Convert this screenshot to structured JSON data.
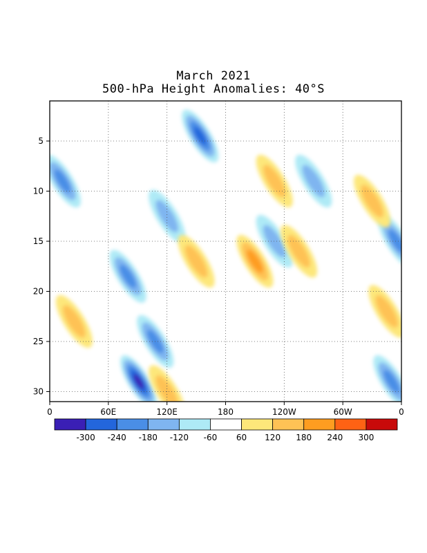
{
  "chart_data": {
    "type": "heatmap",
    "title": "March 2021",
    "subtitle": "500-hPa Height Anomalies: 40°S",
    "xlabel": "",
    "ylabel": "",
    "x_ticks": [
      "0",
      "60E",
      "120E",
      "180",
      "120W",
      "60W",
      "0"
    ],
    "x_tick_values": [
      0,
      60,
      120,
      180,
      240,
      300,
      360
    ],
    "y_ticks": [
      "5",
      "10",
      "15",
      "20",
      "25",
      "30"
    ],
    "y_tick_values": [
      5,
      10,
      15,
      20,
      25,
      30
    ],
    "xlim": [
      0,
      360
    ],
    "ylim": [
      1,
      31
    ],
    "y_inverted": true,
    "grid": true,
    "legend_placement": "bottom",
    "colorbar": {
      "labels": [
        "-300",
        "-240",
        "-180",
        "-120",
        "-60",
        "60",
        "120",
        "180",
        "240",
        "300"
      ],
      "label_values": [
        -300,
        -240,
        -180,
        -120,
        -60,
        60,
        120,
        180,
        240,
        300
      ],
      "colors": [
        "#3a1fb5",
        "#2366dc",
        "#4a8ee6",
        "#7fb5f0",
        "#aeeaf6",
        "#ffffff",
        "#fde77a",
        "#fec255",
        "#fe9d20",
        "#fe6214",
        "#c80a0a"
      ]
    },
    "contour_label": "0",
    "features": [
      {
        "sign": "neg",
        "peak": -240,
        "lon": 154,
        "day": 4.5
      },
      {
        "sign": "neg",
        "peak": -180,
        "lon": 13,
        "day": 9
      },
      {
        "sign": "neg",
        "peak": -120,
        "lon": 120,
        "day": 12.5
      },
      {
        "sign": "neg",
        "peak": -180,
        "lon": 80,
        "day": 18.5
      },
      {
        "sign": "neg",
        "peak": -180,
        "lon": 108,
        "day": 25
      },
      {
        "sign": "neg",
        "peak": -300,
        "lon": 91,
        "day": 29
      },
      {
        "sign": "neg",
        "peak": -180,
        "lon": 355,
        "day": 15
      },
      {
        "sign": "neg",
        "peak": -180,
        "lon": 350,
        "day": 29
      },
      {
        "sign": "neg",
        "peak": -120,
        "lon": 230,
        "day": 15
      },
      {
        "sign": "neg",
        "peak": -120,
        "lon": 270,
        "day": 9
      },
      {
        "sign": "pos",
        "peak": 180,
        "lon": 210,
        "day": 17
      },
      {
        "sign": "pos",
        "peak": 120,
        "lon": 150,
        "day": 17
      },
      {
        "sign": "pos",
        "peak": 120,
        "lon": 230,
        "day": 9
      },
      {
        "sign": "pos",
        "peak": 120,
        "lon": 255,
        "day": 16
      },
      {
        "sign": "pos",
        "peak": 120,
        "lon": 25,
        "day": 23
      },
      {
        "sign": "pos",
        "peak": 120,
        "lon": 120,
        "day": 30
      },
      {
        "sign": "pos",
        "peak": 120,
        "lon": 345,
        "day": 22
      },
      {
        "sign": "pos",
        "peak": 120,
        "lon": 330,
        "day": 11
      }
    ]
  }
}
